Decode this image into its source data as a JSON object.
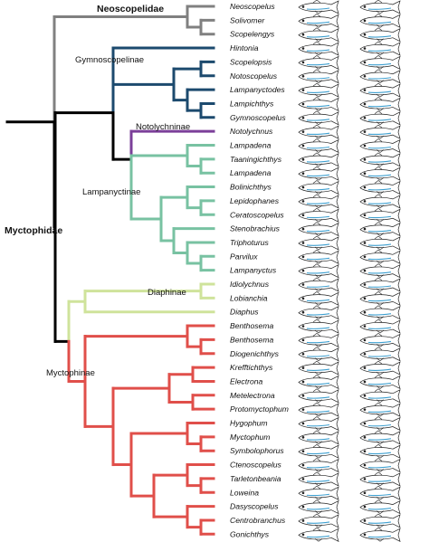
{
  "tips": [
    "Neoscopelus",
    "Solivomer",
    "Scopelengys",
    "Hintonia",
    "Scopelopsis",
    "Notoscopelus",
    "Lampanyctodes",
    "Lampichthys",
    "Gymnoscopelus",
    "Notolychnus",
    "Lampadena",
    "Taaningichthys",
    "Lampadena",
    "Bolinichthys",
    "Lepidophanes",
    "Ceratoscopelus",
    "Stenobrachius",
    "Triphoturus",
    "Parvilux",
    "Lampanyctus",
    "Idiolychnus",
    "Lobianchia",
    "Diaphus",
    "Benthosema",
    "Benthosema",
    "Diogenichthys",
    "Krefftichthys",
    "Electrona",
    "Metelectrona",
    "Protomyctophum",
    "Hygophum",
    "Myctophum",
    "Symbolophorus",
    "Ctenoscopelus",
    "Tarletonbeania",
    "Loweina",
    "Dasyscopelus",
    "Centrobranchus",
    "Gonichthys"
  ],
  "clades": {
    "neoscopelidae": "Neoscopelidae",
    "myctophidae": "Myctophidae",
    "gymnoscopelinae": "Gymnoscopelinae",
    "notolychninae": "Notolychninae",
    "lampanyctinae": "Lampanyctinae",
    "diaphinae": "Diaphinae",
    "myctophinae": "Myctophinae"
  },
  "colors": {
    "root": "#000000",
    "neoscopelidae": "#808080",
    "gymnoscopelinae": "#1c4a6e",
    "notolychninae": "#7b3f99",
    "lampanyctinae": "#78c2a2",
    "diaphinae": "#cfe39b",
    "myctophinae": "#e04f4a"
  },
  "icons": {
    "fish": "fish-illustration-icon"
  }
}
